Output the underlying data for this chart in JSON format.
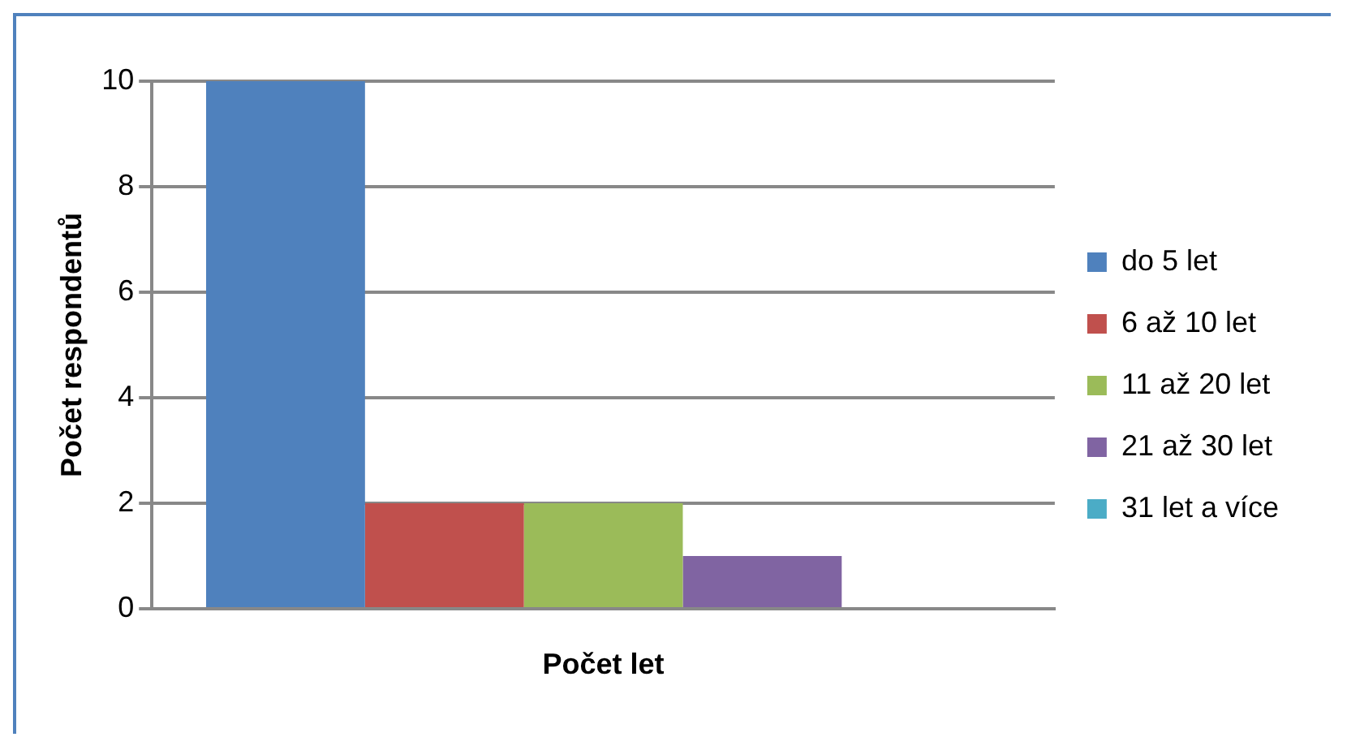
{
  "chart_data": {
    "type": "bar",
    "categories": [
      null
    ],
    "xlabel": "Počet let",
    "ylabel": "Počet respondentů",
    "series": [
      {
        "name": "do 5 let",
        "color": "#4f81bd",
        "values": [
          10
        ]
      },
      {
        "name": "6 až 10 let",
        "color": "#c0504d",
        "values": [
          2
        ]
      },
      {
        "name": "11 až 20 let",
        "color": "#9bbb59",
        "values": [
          2
        ]
      },
      {
        "name": "21 až 30 let",
        "color": "#8064a2",
        "values": [
          1
        ]
      },
      {
        "name": "31 let a více",
        "color": "#4bacc6",
        "values": [
          0
        ]
      }
    ],
    "ylim": [
      0,
      10
    ],
    "yticks": [
      0,
      2,
      4,
      6,
      8,
      10
    ],
    "grid": "y",
    "legend": "right"
  }
}
